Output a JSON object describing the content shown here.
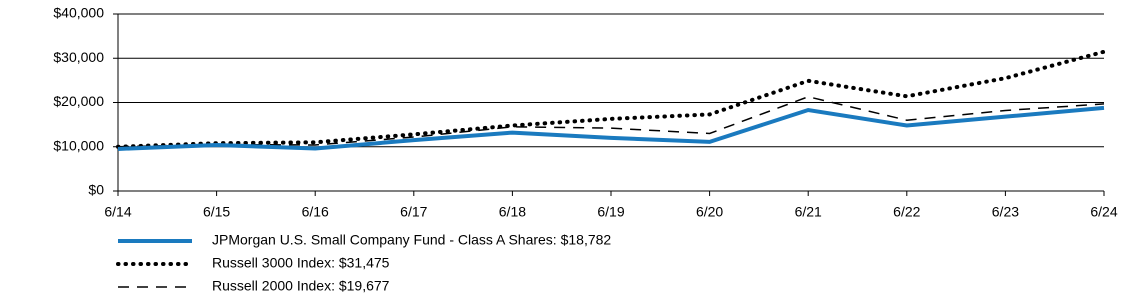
{
  "chart_data": {
    "type": "line",
    "categories": [
      "6/14",
      "6/15",
      "6/16",
      "6/17",
      "6/18",
      "6/19",
      "6/20",
      "6/21",
      "6/22",
      "6/23",
      "6/24"
    ],
    "series": [
      {
        "name": "JPMorgan U.S. Small Company Fund - Class A Shares: $18,782",
        "color": "#1a7abf",
        "style": "solid",
        "values": [
          9500,
          10400,
          9600,
          11500,
          13200,
          12000,
          11100,
          18300,
          14800,
          16800,
          18782
        ]
      },
      {
        "name": "Russell 3000 Index: $31,475",
        "color": "#000000",
        "style": "dotted",
        "values": [
          10000,
          10800,
          11000,
          12800,
          14800,
          16300,
          17300,
          24900,
          21400,
          25500,
          31475
        ]
      },
      {
        "name": "Russell 2000 Index: $19,677",
        "color": "#000000",
        "style": "dashed",
        "values": [
          10000,
          10500,
          10400,
          12200,
          14500,
          14200,
          13000,
          21300,
          16000,
          18200,
          19677
        ]
      }
    ],
    "ylim": [
      0,
      40000
    ],
    "yticks": [
      {
        "value": 0,
        "label": "$0"
      },
      {
        "value": 10000,
        "label": "$10,000"
      },
      {
        "value": 20000,
        "label": "$20,000"
      },
      {
        "value": 30000,
        "label": "$30,000"
      },
      {
        "value": 40000,
        "label": "$40,000"
      }
    ],
    "grid": true
  }
}
